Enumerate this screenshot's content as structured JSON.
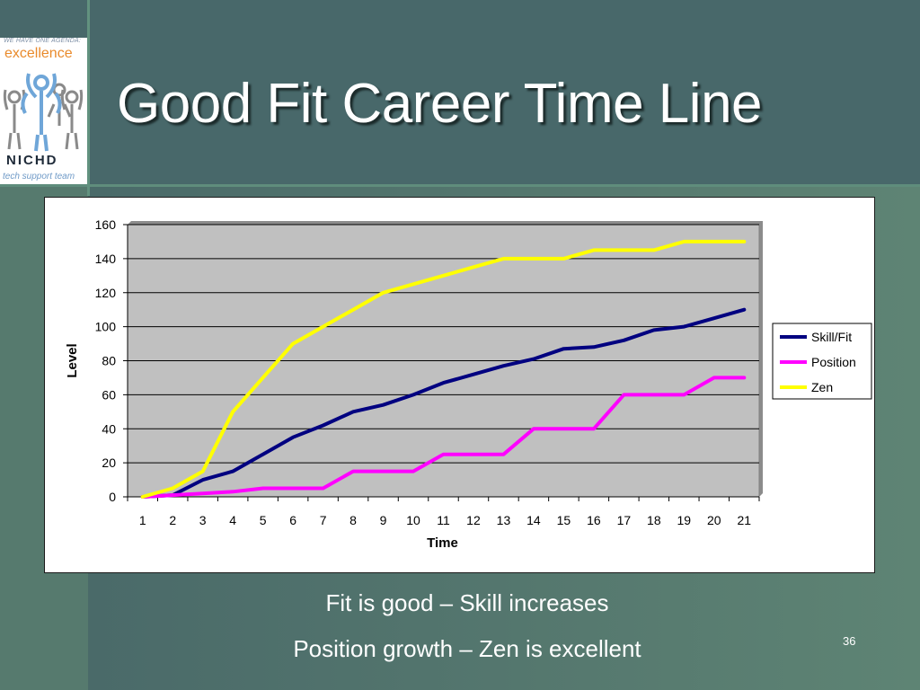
{
  "slide": {
    "title": "Good Fit Career Time Line",
    "caption_line1": "Fit is good – Skill increases",
    "caption_line2": "Position growth – Zen is excellent",
    "slide_number": "36"
  },
  "logo": {
    "tagline": "WE HAVE ONE AGENDA:",
    "word": "excellence",
    "name": "NICHD",
    "sub": "tech support team"
  },
  "colors": {
    "background": "#4c6d6b",
    "plot_area": "#c0c0c0",
    "skill_fit": "#000080",
    "position": "#ff00ff",
    "zen": "#ffff00"
  },
  "chart_data": {
    "type": "line",
    "xlabel": "Time",
    "ylabel": "Level",
    "categories": [
      "1",
      "2",
      "3",
      "4",
      "5",
      "6",
      "7",
      "8",
      "9",
      "10",
      "11",
      "12",
      "13",
      "14",
      "15",
      "16",
      "17",
      "18",
      "19",
      "20",
      "21"
    ],
    "ylim": [
      0,
      160
    ],
    "yticks": [
      0,
      20,
      40,
      60,
      80,
      100,
      120,
      140,
      160
    ],
    "grid": "horizontal",
    "legend_position": "right",
    "series": [
      {
        "name": "Skill/Fit",
        "color": "#000080",
        "values": [
          0,
          1,
          10,
          15,
          25,
          35,
          42,
          50,
          54,
          60,
          67,
          72,
          77,
          81,
          87,
          88,
          92,
          98,
          100,
          105,
          110
        ]
      },
      {
        "name": "Position",
        "color": "#ff00ff",
        "values": [
          0,
          1,
          2,
          3,
          5,
          5,
          5,
          15,
          15,
          15,
          25,
          25,
          25,
          40,
          40,
          40,
          60,
          60,
          60,
          70,
          70
        ]
      },
      {
        "name": "Zen",
        "color": "#ffff00",
        "values": [
          0,
          5,
          15,
          50,
          70,
          90,
          100,
          110,
          120,
          125,
          130,
          135,
          140,
          140,
          140,
          145,
          145,
          145,
          150,
          150,
          150
        ]
      }
    ]
  }
}
